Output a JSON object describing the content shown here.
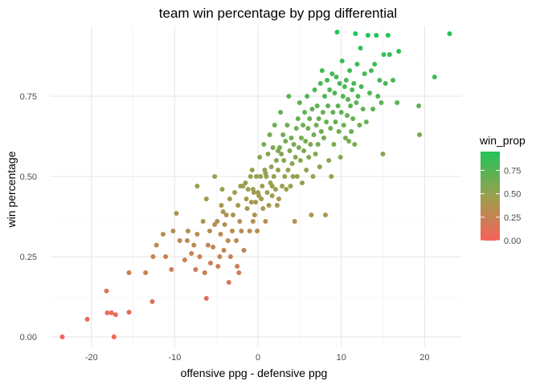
{
  "chart_data": {
    "type": "scatter",
    "title": "team win percentage by ppg differential",
    "xlabel": "offensive ppg - defensive ppg",
    "ylabel": "win percentage",
    "xlim": [
      -25,
      24.5
    ],
    "ylim": [
      -0.03,
      0.97
    ],
    "x_ticks": [
      -20,
      -10,
      0,
      10,
      20
    ],
    "x_tick_labels": [
      "-20",
      "-10",
      "0",
      "10",
      "20"
    ],
    "y_ticks": [
      0,
      0.25,
      0.5,
      0.75
    ],
    "y_tick_labels": [
      "0.00",
      "0.25",
      "0.50",
      "0.75"
    ],
    "grid": true,
    "legend": {
      "title": "win_prop",
      "type": "colorbar",
      "position": "right",
      "ticks": [
        0,
        0.25,
        0.5,
        0.75
      ],
      "tick_labels": [
        "0.00",
        "0.25",
        "0.50",
        "0.75"
      ],
      "range": [
        0,
        0.95
      ]
    },
    "color_scale": {
      "low": "#f8605a",
      "mid": "#9aa04e",
      "high": "#22c35a"
    },
    "point_color_variable": "y",
    "points": [
      [
        -23.5,
        0.0
      ],
      [
        -20.5,
        0.055
      ],
      [
        -18.2,
        0.143
      ],
      [
        -18.1,
        0.075
      ],
      [
        -17.6,
        0.075
      ],
      [
        -17.3,
        0.0
      ],
      [
        -17.1,
        0.069
      ],
      [
        -15.5,
        0.077
      ],
      [
        -15.5,
        0.2
      ],
      [
        -13.5,
        0.2
      ],
      [
        -12.7,
        0.11
      ],
      [
        -12.6,
        0.25
      ],
      [
        -12.2,
        0.286
      ],
      [
        -11.4,
        0.32
      ],
      [
        -11.1,
        0.25
      ],
      [
        -10.4,
        0.21
      ],
      [
        -10.2,
        0.33
      ],
      [
        -9.8,
        0.385
      ],
      [
        -9.4,
        0.3
      ],
      [
        -8.8,
        0.24
      ],
      [
        -8.5,
        0.3
      ],
      [
        -8.4,
        0.33
      ],
      [
        -8.0,
        0.26
      ],
      [
        -7.7,
        0.286
      ],
      [
        -7.5,
        0.21
      ],
      [
        -7.3,
        0.47
      ],
      [
        -7.3,
        0.32
      ],
      [
        -7.0,
        0.25
      ],
      [
        -6.6,
        0.36
      ],
      [
        -6.4,
        0.2
      ],
      [
        -6.2,
        0.12
      ],
      [
        -6.2,
        0.43
      ],
      [
        -6.0,
        0.286
      ],
      [
        -5.8,
        0.33
      ],
      [
        -5.7,
        0.23
      ],
      [
        -5.4,
        0.28
      ],
      [
        -5.2,
        0.35
      ],
      [
        -5.2,
        0.5
      ],
      [
        -4.9,
        0.36
      ],
      [
        -4.8,
        0.22
      ],
      [
        -4.6,
        0.25
      ],
      [
        -4.5,
        0.32
      ],
      [
        -4.4,
        0.41
      ],
      [
        -4.3,
        0.46
      ],
      [
        -4.2,
        0.39
      ],
      [
        -4.1,
        0.27
      ],
      [
        -4.0,
        0.35
      ],
      [
        -3.8,
        0.38
      ],
      [
        -3.6,
        0.3
      ],
      [
        -3.5,
        0.17
      ],
      [
        -3.4,
        0.43
      ],
      [
        -3.3,
        0.25
      ],
      [
        -3.1,
        0.33
      ],
      [
        -3.0,
        0.38
      ],
      [
        -2.8,
        0.45
      ],
      [
        -2.6,
        0.3
      ],
      [
        -2.5,
        0.22
      ],
      [
        -2.4,
        0.41
      ],
      [
        -2.3,
        0.2
      ],
      [
        -2.2,
        0.36
      ],
      [
        -2.1,
        0.47
      ],
      [
        -2.0,
        0.33
      ],
      [
        -1.8,
        0.47
      ],
      [
        -1.7,
        0.27
      ],
      [
        -1.5,
        0.48
      ],
      [
        -1.4,
        0.43
      ],
      [
        -1.3,
        0.4
      ],
      [
        -1.2,
        0.46
      ],
      [
        -1.0,
        0.33
      ],
      [
        -0.9,
        0.5
      ],
      [
        -0.8,
        0.42
      ],
      [
        -0.7,
        0.52
      ],
      [
        -0.6,
        0.36
      ],
      [
        -0.5,
        0.45
      ],
      [
        -0.4,
        0.38
      ],
      [
        -0.3,
        0.42
      ],
      [
        -0.2,
        0.5
      ],
      [
        -0.1,
        0.33
      ],
      [
        0.0,
        0.45
      ],
      [
        0.1,
        0.44
      ],
      [
        0.2,
        0.56
      ],
      [
        0.3,
        0.5
      ],
      [
        0.4,
        0.43
      ],
      [
        0.5,
        0.47
      ],
      [
        0.6,
        0.4
      ],
      [
        0.7,
        0.6
      ],
      [
        0.8,
        0.52
      ],
      [
        0.9,
        0.36
      ],
      [
        1.0,
        0.5
      ],
      [
        1.1,
        0.45
      ],
      [
        1.2,
        0.57
      ],
      [
        1.3,
        0.41
      ],
      [
        1.4,
        0.63
      ],
      [
        1.5,
        0.48
      ],
      [
        1.6,
        0.53
      ],
      [
        1.7,
        0.44
      ],
      [
        1.8,
        0.59
      ],
      [
        1.9,
        0.5
      ],
      [
        2.0,
        0.66
      ],
      [
        2.1,
        0.46
      ],
      [
        2.2,
        0.55
      ],
      [
        2.3,
        0.41
      ],
      [
        2.4,
        0.52
      ],
      [
        2.5,
        0.43
      ],
      [
        2.6,
        0.59
      ],
      [
        2.7,
        0.7
      ],
      [
        2.8,
        0.57
      ],
      [
        2.9,
        0.47
      ],
      [
        3.0,
        0.63
      ],
      [
        3.1,
        0.55
      ],
      [
        3.2,
        0.5
      ],
      [
        3.3,
        0.61
      ],
      [
        3.4,
        0.46
      ],
      [
        3.5,
        0.66
      ],
      [
        3.6,
        0.52
      ],
      [
        3.7,
        0.75
      ],
      [
        3.8,
        0.58
      ],
      [
        3.9,
        0.47
      ],
      [
        4.0,
        0.62
      ],
      [
        4.1,
        0.54
      ],
      [
        4.2,
        0.5
      ],
      [
        4.3,
        0.6
      ],
      [
        4.4,
        0.36
      ],
      [
        4.5,
        0.56
      ],
      [
        4.6,
        0.65
      ],
      [
        4.7,
        0.5
      ],
      [
        4.8,
        0.68
      ],
      [
        4.9,
        0.59
      ],
      [
        5.0,
        0.73
      ],
      [
        5.1,
        0.55
      ],
      [
        5.2,
        0.62
      ],
      [
        5.3,
        0.48
      ],
      [
        5.4,
        0.66
      ],
      [
        5.5,
        0.58
      ],
      [
        5.6,
        0.7
      ],
      [
        5.7,
        0.61
      ],
      [
        5.8,
        0.52
      ],
      [
        5.9,
        0.75
      ],
      [
        6.0,
        0.65
      ],
      [
        6.1,
        0.56
      ],
      [
        6.2,
        0.68
      ],
      [
        6.3,
        0.6
      ],
      [
        6.4,
        0.38
      ],
      [
        6.5,
        0.71
      ],
      [
        6.6,
        0.5
      ],
      [
        6.7,
        0.63
      ],
      [
        6.8,
        0.77
      ],
      [
        6.9,
        0.57
      ],
      [
        7.0,
        0.66
      ],
      [
        7.1,
        0.72
      ],
      [
        7.2,
        0.6
      ],
      [
        7.3,
        0.68
      ],
      [
        7.4,
        0.53
      ],
      [
        7.5,
        0.79
      ],
      [
        7.6,
        0.64
      ],
      [
        7.7,
        0.83
      ],
      [
        7.8,
        0.7
      ],
      [
        7.9,
        0.62
      ],
      [
        8.0,
        0.75
      ],
      [
        8.1,
        0.38
      ],
      [
        8.2,
        0.67
      ],
      [
        8.3,
        0.8
      ],
      [
        8.4,
        0.72
      ],
      [
        8.5,
        0.55
      ],
      [
        8.6,
        0.77
      ],
      [
        8.7,
        0.65
      ],
      [
        8.8,
        0.5
      ],
      [
        8.9,
        0.82
      ],
      [
        9.0,
        0.7
      ],
      [
        9.1,
        0.6
      ],
      [
        9.2,
        0.76
      ],
      [
        9.3,
        0.67
      ],
      [
        9.4,
        0.81
      ],
      [
        9.5,
        0.95
      ],
      [
        9.6,
        0.72
      ],
      [
        9.7,
        0.64
      ],
      [
        9.8,
        0.79
      ],
      [
        9.9,
        0.56
      ],
      [
        10.0,
        0.7
      ],
      [
        10.1,
        0.86
      ],
      [
        10.2,
        0.75
      ],
      [
        10.3,
        0.66
      ],
      [
        10.4,
        0.78
      ],
      [
        10.5,
        0.62
      ],
      [
        10.6,
        0.8
      ],
      [
        10.7,
        0.69
      ],
      [
        10.8,
        0.74
      ],
      [
        10.9,
        0.61
      ],
      [
        11.0,
        0.83
      ],
      [
        11.1,
        0.72
      ],
      [
        11.2,
        0.64
      ],
      [
        11.3,
        0.77
      ],
      [
        11.4,
        0.68
      ],
      [
        11.5,
        0.79
      ],
      [
        11.6,
        0.6
      ],
      [
        11.7,
        0.945
      ],
      [
        11.8,
        0.73
      ],
      [
        11.9,
        0.85
      ],
      [
        12.0,
        0.75
      ],
      [
        12.2,
        0.66
      ],
      [
        12.3,
        0.9
      ],
      [
        12.4,
        0.78
      ],
      [
        12.6,
        0.71
      ],
      [
        12.8,
        0.82
      ],
      [
        13.0,
        0.67
      ],
      [
        13.2,
        0.94
      ],
      [
        13.4,
        0.76
      ],
      [
        13.6,
        0.83
      ],
      [
        13.8,
        0.71
      ],
      [
        14.0,
        0.85
      ],
      [
        14.2,
        0.94
      ],
      [
        14.4,
        0.75
      ],
      [
        14.6,
        0.8
      ],
      [
        14.8,
        0.73
      ],
      [
        15.0,
        0.57
      ],
      [
        15.1,
        0.88
      ],
      [
        15.3,
        0.79
      ],
      [
        15.6,
        0.94
      ],
      [
        15.8,
        0.88
      ],
      [
        16.2,
        0.8
      ],
      [
        16.7,
        0.73
      ],
      [
        16.9,
        0.89
      ],
      [
        19.3,
        0.72
      ],
      [
        19.4,
        0.63
      ],
      [
        21.2,
        0.81
      ],
      [
        23.0,
        0.945
      ],
      [
        0.9,
        0.51
      ],
      [
        1.7,
        0.47
      ],
      [
        -0.6,
        0.46
      ],
      [
        2.4,
        0.58
      ]
    ]
  }
}
